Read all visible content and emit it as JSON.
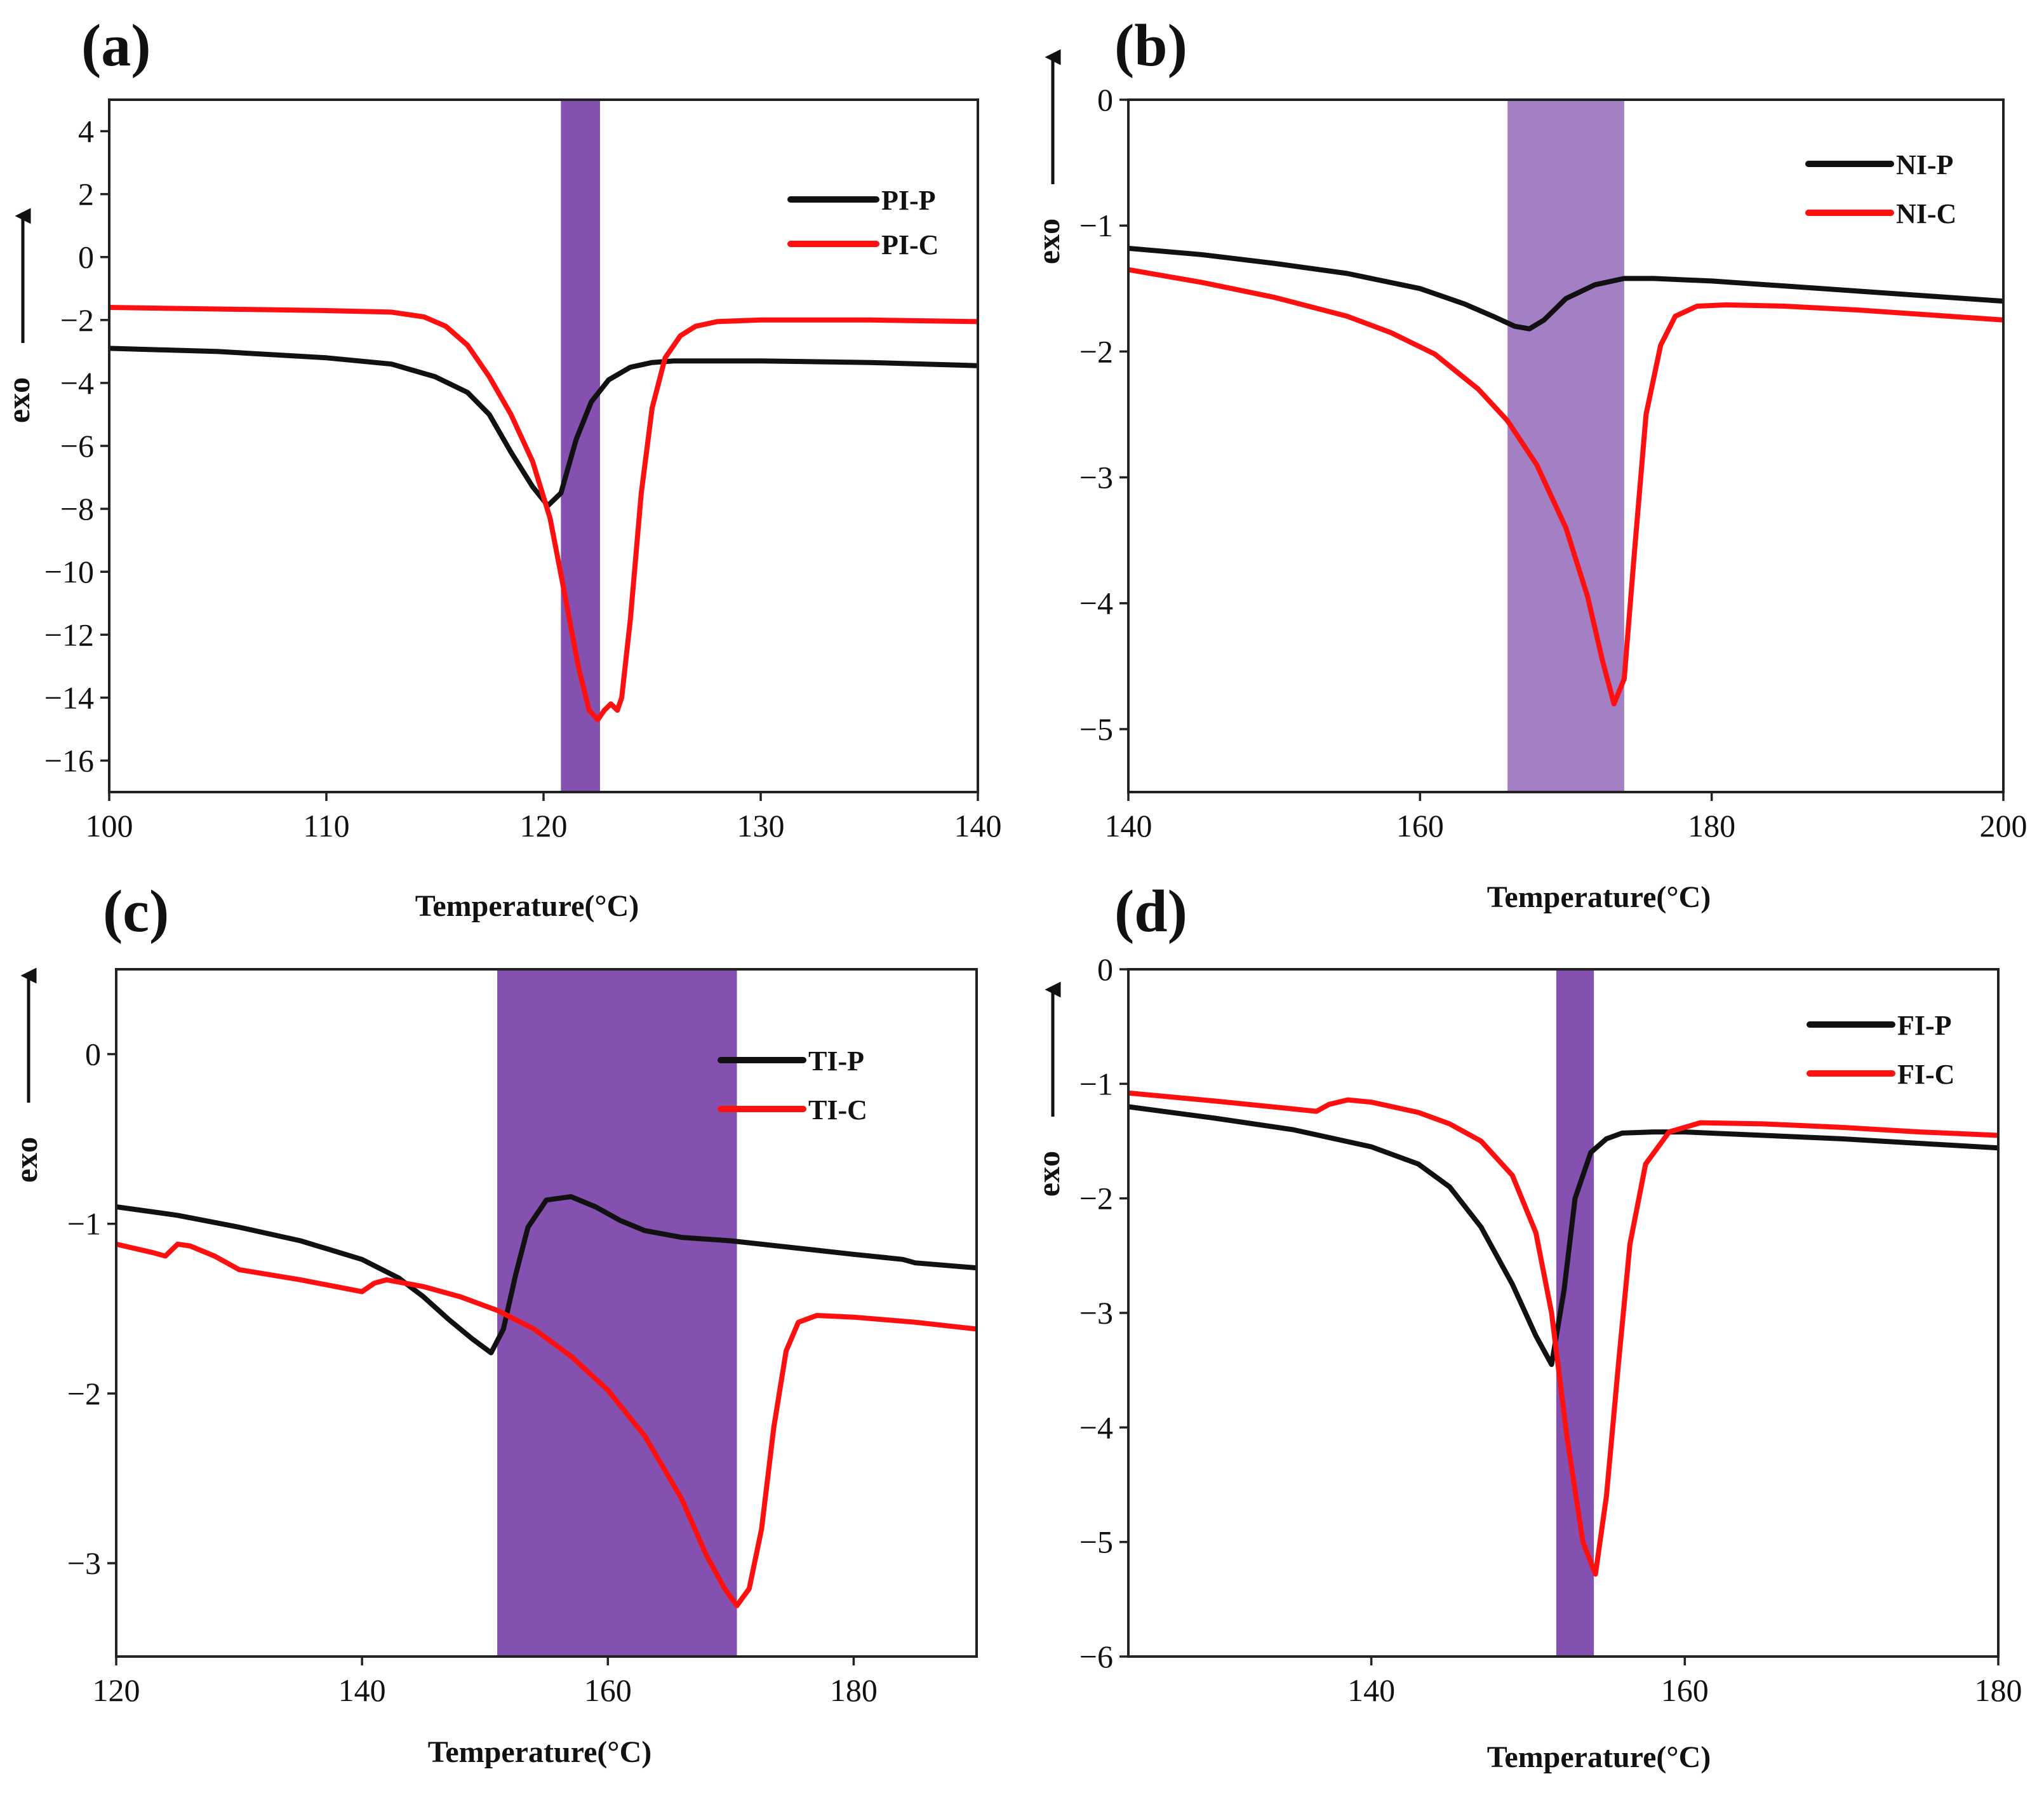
{
  "chart_data": [
    {
      "panel": "(a)",
      "type": "line",
      "xlabel": "Temperature(°C)",
      "ylabel": "exo",
      "xlim": [
        100,
        140
      ],
      "ylim": [
        -17,
        5
      ],
      "xticks": [
        100,
        110,
        120,
        130,
        140
      ],
      "yticks": [
        4,
        2,
        0,
        -2,
        -4,
        -6,
        -8,
        -10,
        -12,
        -14,
        -16
      ],
      "band": [
        120.8,
        122.6
      ],
      "band_color": "#7d48ad",
      "series": [
        {
          "name": "PI-P",
          "color": "#111111",
          "x": [
            100,
            105,
            110,
            113,
            115,
            116.5,
            117.5,
            118.5,
            119.5,
            120.2,
            120.8,
            121.5,
            122.2,
            123,
            124,
            125,
            126,
            128,
            130,
            135,
            140
          ],
          "y": [
            -2.9,
            -3.0,
            -3.2,
            -3.4,
            -3.8,
            -4.3,
            -5.0,
            -6.2,
            -7.3,
            -7.9,
            -7.5,
            -5.8,
            -4.6,
            -3.9,
            -3.5,
            -3.35,
            -3.3,
            -3.3,
            -3.3,
            -3.35,
            -3.45
          ]
        },
        {
          "name": "PI-C",
          "color": "#ff1010",
          "x": [
            100,
            105,
            110,
            113,
            114.5,
            115.5,
            116.5,
            117.5,
            118.5,
            119.5,
            120.3,
            121,
            121.6,
            122.1,
            122.5,
            122.8,
            123.1,
            123.4,
            123.6,
            124,
            124.5,
            125,
            125.6,
            126.3,
            127,
            128,
            130,
            135,
            140
          ],
          "y": [
            -1.6,
            -1.65,
            -1.7,
            -1.75,
            -1.9,
            -2.2,
            -2.8,
            -3.8,
            -5.0,
            -6.5,
            -8.3,
            -10.8,
            -13.0,
            -14.4,
            -14.7,
            -14.4,
            -14.2,
            -14.4,
            -14.0,
            -11.5,
            -7.5,
            -4.8,
            -3.2,
            -2.5,
            -2.2,
            -2.05,
            -2.0,
            -2.0,
            -2.05
          ]
        }
      ],
      "legend": [
        "PI-P",
        "PI-C"
      ]
    },
    {
      "panel": "(b)",
      "type": "line",
      "xlabel": "Temperature(°C)",
      "ylabel": "exo",
      "xlim": [
        140,
        200
      ],
      "ylim": [
        -5.5,
        0
      ],
      "xticks": [
        140,
        160,
        180,
        200
      ],
      "yticks": [
        0,
        -1,
        -2,
        -3,
        -4,
        -5
      ],
      "band": [
        166,
        174
      ],
      "band_color": "#9e79c0",
      "series": [
        {
          "name": "NI-P",
          "color": "#111111",
          "x": [
            140,
            145,
            150,
            155,
            160,
            163,
            165,
            166.5,
            167.5,
            168.5,
            170,
            172,
            174,
            176,
            180,
            185,
            190,
            195,
            200
          ],
          "y": [
            -1.18,
            -1.23,
            -1.3,
            -1.38,
            -1.5,
            -1.62,
            -1.72,
            -1.8,
            -1.82,
            -1.75,
            -1.58,
            -1.47,
            -1.42,
            -1.42,
            -1.44,
            -1.48,
            -1.52,
            -1.56,
            -1.6
          ]
        },
        {
          "name": "NI-C",
          "color": "#ff1010",
          "x": [
            140,
            145,
            150,
            155,
            158,
            161,
            164,
            166,
            168,
            170,
            171.5,
            172.5,
            173.3,
            174,
            174.7,
            175.5,
            176.5,
            177.5,
            179,
            181,
            185,
            190,
            195,
            200
          ],
          "y": [
            -1.35,
            -1.45,
            -1.57,
            -1.72,
            -1.85,
            -2.02,
            -2.3,
            -2.55,
            -2.9,
            -3.4,
            -3.95,
            -4.45,
            -4.8,
            -4.6,
            -3.6,
            -2.5,
            -1.95,
            -1.72,
            -1.64,
            -1.63,
            -1.64,
            -1.67,
            -1.71,
            -1.75
          ]
        }
      ],
      "legend": [
        "NI-P",
        "NI-C"
      ]
    },
    {
      "panel": "(c)",
      "type": "line",
      "xlabel": "Temperature(°C)",
      "ylabel": "exo",
      "xlim": [
        120,
        190
      ],
      "ylim": [
        -3.55,
        0.5
      ],
      "xticks": [
        120,
        140,
        160,
        180
      ],
      "yticks": [
        0,
        -1,
        -2,
        -3
      ],
      "band": [
        151,
        170.5
      ],
      "band_color": "#7d48ad",
      "series": [
        {
          "name": "TI-P",
          "color": "#111111",
          "x": [
            120,
            125,
            130,
            135,
            140,
            143,
            145,
            147,
            149,
            150.5,
            151.5,
            152.5,
            153.5,
            155,
            157,
            159,
            161,
            163,
            166,
            170,
            175,
            180,
            184,
            185,
            190
          ],
          "y": [
            -0.9,
            -0.95,
            -1.02,
            -1.1,
            -1.21,
            -1.32,
            -1.43,
            -1.56,
            -1.68,
            -1.76,
            -1.62,
            -1.3,
            -1.02,
            -0.86,
            -0.84,
            -0.9,
            -0.98,
            -1.04,
            -1.08,
            -1.1,
            -1.14,
            -1.18,
            -1.21,
            -1.23,
            -1.26
          ]
        },
        {
          "name": "TI-C",
          "color": "#ff1010",
          "x": [
            120,
            123,
            124,
            125,
            126,
            128,
            130,
            135,
            140,
            141,
            142,
            145,
            148,
            151,
            154,
            157,
            160,
            163,
            166,
            168,
            169.5,
            170.5,
            171.5,
            172.5,
            173.5,
            174.5,
            175.5,
            177,
            180,
            185,
            190
          ],
          "y": [
            -1.12,
            -1.17,
            -1.19,
            -1.12,
            -1.13,
            -1.19,
            -1.27,
            -1.33,
            -1.4,
            -1.35,
            -1.33,
            -1.37,
            -1.43,
            -1.51,
            -1.62,
            -1.78,
            -1.98,
            -2.25,
            -2.62,
            -2.95,
            -3.15,
            -3.25,
            -3.15,
            -2.8,
            -2.2,
            -1.75,
            -1.58,
            -1.54,
            -1.55,
            -1.58,
            -1.62
          ]
        }
      ],
      "legend": [
        "TI-P",
        "TI-C"
      ]
    },
    {
      "panel": "(d)",
      "type": "line",
      "xlabel": "Temperature(°C)",
      "ylabel": "exo",
      "xlim": [
        124.5,
        180
      ],
      "ylim": [
        -6,
        0
      ],
      "xticks": [
        140,
        160,
        180
      ],
      "yticks": [
        0,
        -1,
        -2,
        -3,
        -4,
        -5,
        -6
      ],
      "band": [
        151.8,
        154.2
      ],
      "band_color": "#7d48ad",
      "series": [
        {
          "name": "FI-P",
          "color": "#111111",
          "x": [
            124.5,
            130,
            135,
            140,
            143,
            145,
            147,
            149,
            150.5,
            151.5,
            152.3,
            153,
            154,
            155,
            156,
            158,
            160,
            165,
            170,
            175,
            180
          ],
          "y": [
            -1.2,
            -1.3,
            -1.4,
            -1.55,
            -1.7,
            -1.9,
            -2.25,
            -2.75,
            -3.2,
            -3.45,
            -2.8,
            -2.0,
            -1.6,
            -1.48,
            -1.43,
            -1.42,
            -1.42,
            -1.45,
            -1.48,
            -1.52,
            -1.56
          ]
        },
        {
          "name": "FI-C",
          "color": "#ff1010",
          "x": [
            124.5,
            130,
            136.5,
            137.3,
            138.5,
            140,
            143,
            145,
            147,
            149,
            150.5,
            151.5,
            152.5,
            153.5,
            154.3,
            155,
            155.8,
            156.5,
            157.5,
            159,
            161,
            165,
            170,
            175,
            180
          ],
          "y": [
            -1.08,
            -1.15,
            -1.24,
            -1.18,
            -1.14,
            -1.16,
            -1.25,
            -1.35,
            -1.5,
            -1.8,
            -2.3,
            -3.0,
            -4.1,
            -5.0,
            -5.28,
            -4.6,
            -3.4,
            -2.4,
            -1.7,
            -1.42,
            -1.34,
            -1.35,
            -1.38,
            -1.42,
            -1.45
          ]
        }
      ],
      "legend": [
        "FI-P",
        "FI-C"
      ]
    }
  ]
}
